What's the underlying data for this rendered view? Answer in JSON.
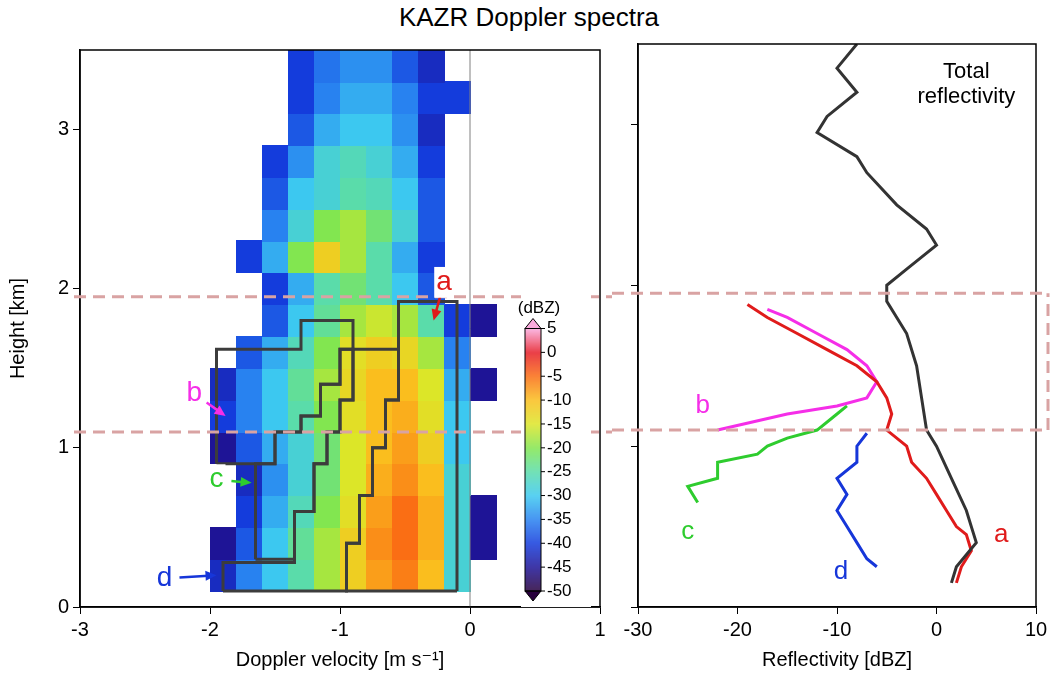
{
  "title": "KAZR Doppler spectra",
  "reference_heights": [
    1.1,
    1.95
  ],
  "chart_data": [
    {
      "type": "heatmap",
      "x_label": "Doppler velocity [m s⁻¹]",
      "y_label": "Height [km]",
      "xlim": [
        -3,
        1
      ],
      "xticks": [
        -3,
        -2,
        -1,
        0,
        1
      ],
      "ylim": [
        0,
        3.5
      ],
      "yticks": [
        0,
        1,
        2,
        3
      ],
      "grid": false,
      "vline": 0,
      "x": [
        -2.3,
        -2.1,
        -1.9,
        -1.7,
        -1.5,
        -1.3,
        -1.1,
        -0.9,
        -0.7,
        -0.5,
        -0.3,
        -0.1,
        0.1,
        0.3
      ],
      "y": [
        0.2,
        0.4,
        0.6,
        0.8,
        1.0,
        1.2,
        1.4,
        1.6,
        1.8,
        2.0,
        2.2,
        2.4,
        2.6,
        2.8,
        3.0,
        3.2,
        3.4
      ],
      "cells": [
        [
          null,
          null,
          -42,
          -35,
          -30,
          -25,
          -18,
          -12,
          -8,
          -6,
          -10,
          -28,
          null,
          null
        ],
        [
          null,
          null,
          -45,
          -38,
          -30,
          -24,
          -18,
          -12,
          -7,
          -5,
          -9,
          -28,
          -45,
          null
        ],
        [
          null,
          null,
          null,
          -40,
          -32,
          -26,
          -20,
          -14,
          -8,
          -5,
          -9,
          -28,
          -45,
          null
        ],
        [
          null,
          null,
          null,
          -42,
          -34,
          -28,
          -22,
          -15,
          -9,
          -7,
          -10,
          -28,
          null,
          null
        ],
        [
          null,
          null,
          -45,
          -38,
          -32,
          -28,
          -22,
          -15,
          -10,
          -8,
          -12,
          -30,
          null,
          null
        ],
        [
          null,
          null,
          -40,
          -35,
          -30,
          -25,
          -20,
          -14,
          -10,
          -9,
          -14,
          -30,
          null,
          null
        ],
        [
          null,
          null,
          -42,
          -35,
          -30,
          -24,
          -18,
          -13,
          -10,
          -10,
          -15,
          -32,
          -45,
          null
        ],
        [
          null,
          null,
          null,
          -38,
          -32,
          -26,
          -20,
          -14,
          -12,
          -13,
          -18,
          -35,
          null,
          null
        ],
        [
          null,
          null,
          null,
          null,
          -38,
          -30,
          -24,
          -18,
          -16,
          -18,
          -25,
          -40,
          -45,
          null
        ],
        [
          null,
          null,
          null,
          null,
          -40,
          -32,
          -25,
          -22,
          -25,
          -30,
          -38,
          null,
          null,
          null
        ],
        [
          null,
          null,
          null,
          -40,
          -32,
          -20,
          -12,
          -18,
          -25,
          -32,
          -40,
          null,
          null,
          null
        ],
        [
          null,
          null,
          null,
          null,
          -35,
          -28,
          -20,
          -18,
          -22,
          -28,
          -38,
          null,
          null,
          null
        ],
        [
          null,
          null,
          null,
          null,
          -38,
          -30,
          -28,
          -25,
          -26,
          -30,
          -38,
          null,
          null,
          null
        ],
        [
          null,
          null,
          null,
          null,
          -40,
          -34,
          -28,
          -26,
          -28,
          -32,
          -40,
          null,
          null,
          null
        ],
        [
          null,
          null,
          null,
          null,
          null,
          -38,
          -32,
          -30,
          -30,
          -34,
          -42,
          null,
          null,
          null
        ],
        [
          null,
          null,
          null,
          null,
          null,
          -40,
          -35,
          -32,
          -32,
          -35,
          -40,
          -40,
          null,
          null
        ],
        [
          null,
          null,
          null,
          null,
          null,
          -40,
          -36,
          -34,
          -34,
          -38,
          -42,
          null,
          null,
          null
        ]
      ],
      "colorbar": {
        "label": "(dBZ)",
        "range": [
          -50,
          5
        ],
        "ticks": [
          5,
          0,
          -5,
          -10,
          -15,
          -20,
          -25,
          -30,
          -35,
          -40,
          -45,
          -50
        ]
      },
      "regions": [
        {
          "name": "a",
          "color": "#e01b1b",
          "label_at": [
            -0.2,
            2.04
          ],
          "arrow_to": [
            -0.28,
            1.8
          ],
          "outline": [
            [
              -0.1,
              0.1
            ],
            [
              -0.1,
              1.92
            ],
            [
              -0.55,
              1.92
            ],
            [
              -0.55,
              1.3
            ],
            [
              -0.65,
              1.3
            ],
            [
              -0.65,
              1.0
            ],
            [
              -0.75,
              1.0
            ],
            [
              -0.75,
              0.7
            ],
            [
              -0.85,
              0.7
            ],
            [
              -0.85,
              0.4
            ],
            [
              -0.95,
              0.4
            ],
            [
              -0.95,
              0.1
            ],
            [
              -0.1,
              0.1
            ]
          ]
        },
        {
          "name": "b",
          "color": "#f52ee8",
          "label_at": [
            -2.12,
            1.34
          ],
          "arrow_to": [
            -1.88,
            1.2
          ],
          "outline": [
            [
              -1.95,
              0.9
            ],
            [
              -1.95,
              1.62
            ],
            [
              -1.3,
              1.62
            ],
            [
              -1.3,
              1.8
            ],
            [
              -0.9,
              1.8
            ],
            [
              -0.9,
              1.62
            ],
            [
              -1.0,
              1.62
            ],
            [
              -1.0,
              1.4
            ],
            [
              -1.15,
              1.4
            ],
            [
              -1.15,
              1.2
            ],
            [
              -1.3,
              1.2
            ],
            [
              -1.3,
              1.1
            ],
            [
              -1.5,
              1.1
            ],
            [
              -1.5,
              0.9
            ],
            [
              -1.95,
              0.9
            ]
          ]
        },
        {
          "name": "c",
          "color": "#2ecc2e",
          "label_at": [
            -1.95,
            0.8
          ],
          "arrow_to": [
            -1.68,
            0.78
          ],
          "outline": [
            [
              -1.65,
              0.3
            ],
            [
              -1.65,
              0.9
            ],
            [
              -1.5,
              0.9
            ],
            [
              -1.5,
              1.1
            ],
            [
              -1.3,
              1.1
            ],
            [
              -1.3,
              1.2
            ],
            [
              -1.15,
              1.2
            ],
            [
              -1.15,
              1.4
            ],
            [
              -1.0,
              1.4
            ],
            [
              -1.0,
              1.62
            ],
            [
              -0.9,
              1.62
            ],
            [
              -0.9,
              1.3
            ],
            [
              -1.0,
              1.3
            ],
            [
              -1.0,
              1.1
            ],
            [
              -1.1,
              1.1
            ],
            [
              -1.1,
              0.9
            ],
            [
              -1.2,
              0.9
            ],
            [
              -1.2,
              0.6
            ],
            [
              -1.35,
              0.6
            ],
            [
              -1.35,
              0.3
            ],
            [
              -1.65,
              0.3
            ]
          ]
        },
        {
          "name": "d",
          "color": "#1636d9",
          "label_at": [
            -2.35,
            0.18
          ],
          "arrow_to": [
            -1.95,
            0.2
          ],
          "outline": [
            [
              -1.9,
              0.1
            ],
            [
              -1.9,
              0.28
            ],
            [
              -1.35,
              0.28
            ],
            [
              -1.35,
              0.6
            ],
            [
              -1.2,
              0.6
            ],
            [
              -1.2,
              0.9
            ],
            [
              -1.1,
              0.9
            ],
            [
              -1.1,
              1.1
            ],
            [
              -1.0,
              1.1
            ],
            [
              -1.0,
              1.3
            ],
            [
              -0.9,
              1.3
            ],
            [
              -0.9,
              1.62
            ],
            [
              -0.55,
              1.62
            ],
            [
              -0.55,
              1.3
            ],
            [
              -0.65,
              1.3
            ],
            [
              -0.65,
              1.0
            ],
            [
              -0.75,
              1.0
            ],
            [
              -0.75,
              0.7
            ],
            [
              -0.85,
              0.7
            ],
            [
              -0.85,
              0.4
            ],
            [
              -0.95,
              0.4
            ],
            [
              -0.95,
              0.1
            ],
            [
              -1.9,
              0.1
            ]
          ]
        }
      ]
    },
    {
      "type": "line",
      "x_label": "Reflectivity [dBZ]",
      "xlim": [
        -30,
        10
      ],
      "xticks": [
        -30,
        -20,
        -10,
        0,
        10
      ],
      "ylim": [
        0,
        3.5
      ],
      "yticks": [
        0,
        1,
        2,
        3
      ],
      "grid": false,
      "tick_labels": "x",
      "series": [
        {
          "name": "Total reflectivity",
          "color": "#333333",
          "label_at": [
            3,
            3.25
          ],
          "x": [
            1.5,
            2,
            4,
            3.5,
            3,
            1.5,
            0,
            -1,
            -1.5,
            -2,
            -3,
            -5,
            -5,
            -3,
            -1,
            0,
            -1,
            -4,
            -7,
            -8,
            -12,
            -11,
            -8,
            -10,
            -8
          ],
          "y": [
            0.15,
            0.25,
            0.4,
            0.5,
            0.6,
            0.8,
            1.0,
            1.1,
            1.3,
            1.5,
            1.7,
            1.9,
            2.0,
            2.1,
            2.2,
            2.25,
            2.35,
            2.5,
            2.7,
            2.8,
            2.95,
            3.05,
            3.2,
            3.35,
            3.5
          ]
        },
        {
          "name": "a",
          "color": "#e01b1b",
          "label_at": [
            6.5,
            0.45
          ],
          "x": [
            2,
            2.5,
            3.5,
            3,
            2,
            1,
            0,
            -1,
            -2.5,
            -3,
            -5,
            -4.5,
            -5,
            -6,
            -8,
            -11,
            -14,
            -17,
            -19
          ],
          "y": [
            0.15,
            0.25,
            0.35,
            0.45,
            0.5,
            0.6,
            0.7,
            0.8,
            0.9,
            1.0,
            1.1,
            1.2,
            1.3,
            1.4,
            1.5,
            1.6,
            1.7,
            1.8,
            1.88
          ]
        },
        {
          "name": "b",
          "color": "#f52ee8",
          "label_at": [
            -23.5,
            1.25
          ],
          "x": [
            -22,
            -15,
            -10,
            -7,
            -6,
            -7,
            -9,
            -12,
            -15,
            -17
          ],
          "y": [
            1.1,
            1.2,
            1.25,
            1.3,
            1.4,
            1.5,
            1.6,
            1.7,
            1.8,
            1.85
          ]
        },
        {
          "name": "c",
          "color": "#2ecc2e",
          "label_at": [
            -25,
            0.47
          ],
          "x": [
            -24,
            -25,
            -22,
            -22,
            -18,
            -17,
            -15,
            -12,
            -10,
            -9
          ],
          "y": [
            0.65,
            0.75,
            0.8,
            0.9,
            0.95,
            1.0,
            1.05,
            1.1,
            1.2,
            1.25
          ]
        },
        {
          "name": "d",
          "color": "#1636d9",
          "label_at": [
            -9.6,
            0.22
          ],
          "x": [
            -6,
            -7,
            -8,
            -9,
            -10,
            -9,
            -10,
            -8,
            -8,
            -7
          ],
          "y": [
            0.25,
            0.3,
            0.4,
            0.5,
            0.6,
            0.7,
            0.8,
            0.9,
            1.0,
            1.08
          ]
        }
      ]
    }
  ]
}
